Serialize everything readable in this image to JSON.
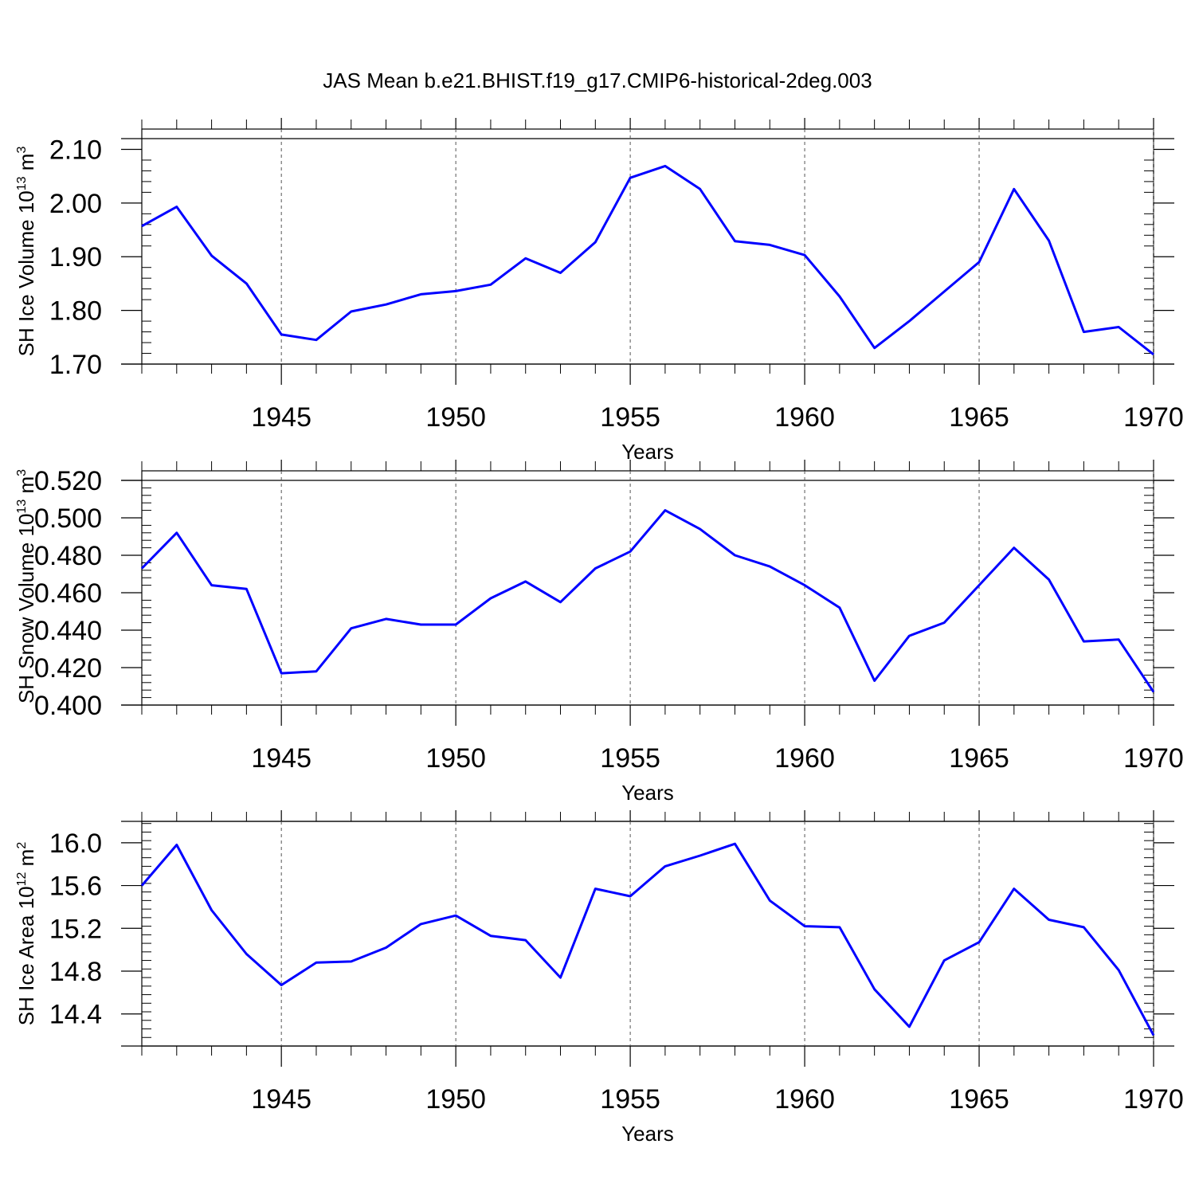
{
  "title": "JAS Mean b.e21.BHIST.f19_g17.CMIP6-historical-2deg.003",
  "line_color": "#0000ff",
  "chart_data": [
    {
      "type": "line",
      "xlabel": "Years",
      "ylabel": {
        "base": "SH Ice Volume 10",
        "exp": "13",
        "unit": " m",
        "unit_exp": "3"
      },
      "xlim": [
        1941,
        1970
      ],
      "ylim": [
        1.7,
        2.12
      ],
      "xticks": [
        "1945",
        "1950",
        "1955",
        "1960",
        "1965",
        "1970"
      ],
      "yticks": [
        "1.70",
        "1.80",
        "1.90",
        "2.00",
        "2.10"
      ],
      "x": [
        1941,
        1942,
        1943,
        1944,
        1945,
        1946,
        1947,
        1948,
        1949,
        1950,
        1951,
        1952,
        1953,
        1954,
        1955,
        1956,
        1957,
        1958,
        1959,
        1960,
        1961,
        1962,
        1963,
        1964,
        1965,
        1966,
        1967,
        1968,
        1969,
        1970
      ],
      "values": [
        1.957,
        1.993,
        1.902,
        1.85,
        1.755,
        1.745,
        1.798,
        1.811,
        1.83,
        1.836,
        1.848,
        1.897,
        1.87,
        1.927,
        2.047,
        2.069,
        2.026,
        1.929,
        1.922,
        1.903,
        1.826,
        1.73,
        1.78,
        1.835,
        1.89,
        2.026,
        1.93,
        1.76,
        1.769,
        1.718
      ]
    },
    {
      "type": "line",
      "xlabel": "Years",
      "ylabel": {
        "base": "SH Snow Volume 10",
        "exp": "13",
        "unit": " m",
        "unit_exp": "3"
      },
      "xlim": [
        1941,
        1970
      ],
      "ylim": [
        0.4,
        0.52
      ],
      "xticks": [
        "1945",
        "1950",
        "1955",
        "1960",
        "1965",
        "1970"
      ],
      "yticks": [
        "0.400",
        "0.420",
        "0.440",
        "0.460",
        "0.480",
        "0.500",
        "0.520"
      ],
      "x": [
        1941,
        1942,
        1943,
        1944,
        1945,
        1946,
        1947,
        1948,
        1949,
        1950,
        1951,
        1952,
        1953,
        1954,
        1955,
        1956,
        1957,
        1958,
        1959,
        1960,
        1961,
        1962,
        1963,
        1964,
        1965,
        1966,
        1967,
        1968,
        1969,
        1970
      ],
      "values": [
        0.473,
        0.492,
        0.464,
        0.462,
        0.417,
        0.418,
        0.441,
        0.446,
        0.443,
        0.443,
        0.457,
        0.466,
        0.455,
        0.473,
        0.482,
        0.504,
        0.494,
        0.48,
        0.474,
        0.464,
        0.452,
        0.413,
        0.437,
        0.444,
        0.464,
        0.484,
        0.467,
        0.434,
        0.435,
        0.407
      ]
    },
    {
      "type": "line",
      "xlabel": "Years",
      "ylabel": {
        "base": "SH Ice Area 10",
        "exp": "12",
        "unit": " m",
        "unit_exp": "2"
      },
      "xlim": [
        1941,
        1970
      ],
      "ylim": [
        14.1,
        16.2
      ],
      "xticks": [
        "1945",
        "1950",
        "1955",
        "1960",
        "1965",
        "1970"
      ],
      "yticks": [
        "14.4",
        "14.8",
        "15.2",
        "15.6",
        "16.0"
      ],
      "x": [
        1941,
        1942,
        1943,
        1944,
        1945,
        1946,
        1947,
        1948,
        1949,
        1950,
        1951,
        1952,
        1953,
        1954,
        1955,
        1956,
        1957,
        1958,
        1959,
        1960,
        1961,
        1962,
        1963,
        1964,
        1965,
        1966,
        1967,
        1968,
        1969,
        1970
      ],
      "values": [
        15.6,
        15.98,
        15.37,
        14.96,
        14.67,
        14.88,
        14.89,
        15.02,
        15.24,
        15.32,
        15.13,
        15.09,
        14.74,
        15.57,
        15.5,
        15.78,
        15.88,
        15.99,
        15.46,
        15.22,
        15.21,
        14.63,
        14.28,
        14.9,
        15.07,
        15.57,
        15.28,
        15.21,
        14.81,
        14.2
      ]
    }
  ]
}
